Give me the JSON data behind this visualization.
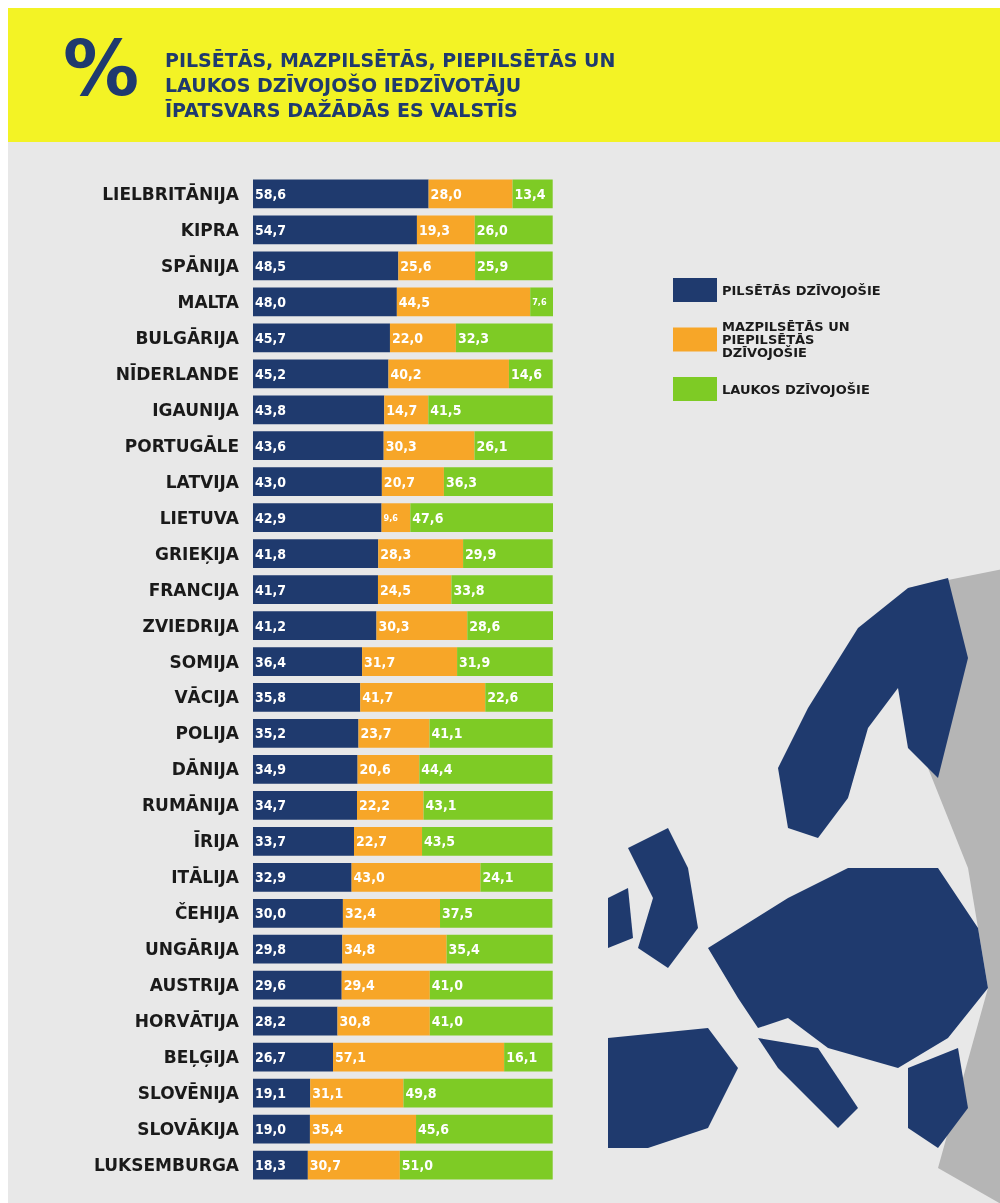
{
  "chart_data": {
    "type": "bar",
    "orientation": "horizontal",
    "stacked": true,
    "legend": "top right",
    "title": "PILSĒTĀS, MAZPILSĒTĀS, PIEPILSĒTĀS UN LAUKOS DZĪVOJOŠO IEDZĪVOTĀJU ĪPATSVARS DAŽĀDĀS ES VALSTĪS",
    "annotations": [
      "%"
    ],
    "categories": [
      "LIELBRITĀNIJA",
      "KIPRA",
      "SPĀNIJA",
      "MALTA",
      "BULGĀRIJA",
      "NĪDERLANDE",
      "IGAUNIJA",
      "PORTUGĀLE",
      "LATVIJA",
      "LIETUVA",
      "GRIEĶIJA",
      "FRANCIJA",
      "ZVIEDRIJA",
      "SOMIJA",
      "VĀCIJA",
      "POLIJA",
      "DĀNIJA",
      "RUMĀNIJA",
      "ĪRIJA",
      "ITĀLIJA",
      "ČEHIJA",
      "UNGĀRIJA",
      "AUSTRIJA",
      "HORVĀTIJA",
      "BEĻĢIJA",
      "SLOVĒNIJA",
      "SLOVĀKIJA",
      "LUKSEMBURGA"
    ],
    "series": [
      {
        "name": "PILSĒTĀS DZĪVOJOŠIE",
        "color": "#1f3a6e",
        "values": [
          58.6,
          54.7,
          48.5,
          48.0,
          45.7,
          45.2,
          43.8,
          43.6,
          43.0,
          42.9,
          41.8,
          41.7,
          41.2,
          36.4,
          35.8,
          35.2,
          34.9,
          34.7,
          33.7,
          32.9,
          30.0,
          29.8,
          29.6,
          28.2,
          26.7,
          19.1,
          19.0,
          18.3
        ],
        "value_labels": [
          "58,6",
          "54,7",
          "48,5",
          "48,0",
          "45,7",
          "45,2",
          "43,8",
          "43,6",
          "43,0",
          "42,9",
          "41,8",
          "41,7",
          "41,2",
          "36,4",
          "35,8",
          "35,2",
          "34,9",
          "34,7",
          "33,7",
          "32,9",
          "30,0",
          "29,8",
          "29,6",
          "28,2",
          "26,7",
          "19,1",
          "19,0",
          "18,3"
        ]
      },
      {
        "name": "MAZPILSĒTĀS UN PIEPILSĒTĀS DZĪVOJOŠIE",
        "color": "#f7a628",
        "values": [
          28.0,
          19.3,
          25.6,
          44.5,
          22.0,
          40.2,
          14.7,
          30.3,
          20.7,
          9.6,
          28.3,
          24.5,
          30.3,
          31.7,
          41.7,
          23.7,
          20.6,
          22.2,
          22.7,
          43.0,
          32.4,
          34.8,
          29.4,
          30.8,
          57.1,
          31.1,
          35.4,
          30.7
        ],
        "value_labels": [
          "28,0",
          "19,3",
          "25,6",
          "44,5",
          "22,0",
          "40,2",
          "14,7",
          "30,3",
          "20,7",
          "9,6",
          "28,3",
          "24,5",
          "30,3",
          "31,7",
          "41,7",
          "23,7",
          "20,6",
          "22,2",
          "22,7",
          "43,0",
          "32,4",
          "34,8",
          "29,4",
          "30,8",
          "57,1",
          "31,1",
          "35,4",
          "30,7"
        ]
      },
      {
        "name": "LAUKOS DZĪVOJOŠIE",
        "color": "#7ecb25",
        "values": [
          13.4,
          26.0,
          25.9,
          7.6,
          32.3,
          14.6,
          41.5,
          26.1,
          36.3,
          47.6,
          29.9,
          33.8,
          28.6,
          31.9,
          22.6,
          41.1,
          44.4,
          43.1,
          43.5,
          24.1,
          37.5,
          35.4,
          41.0,
          41.0,
          16.1,
          49.8,
          45.6,
          51.0
        ],
        "value_labels": [
          "13,4",
          "26,0",
          "25,9",
          "7,6",
          "32,3",
          "14,6",
          "41,5",
          "26,1",
          "36,3",
          "47,6",
          "29,9",
          "33,8",
          "28,6",
          "31,9",
          "22,6",
          "41,1",
          "44,4",
          "43,1",
          "43,5",
          "24,1",
          "37,5",
          "35,4",
          "41,0",
          "41,0",
          "16,1",
          "49,8",
          "45,6",
          "51,0"
        ]
      }
    ]
  }
}
